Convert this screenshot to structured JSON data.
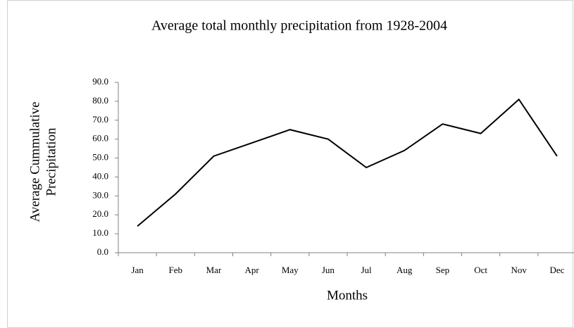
{
  "chart_data": {
    "type": "line",
    "title": "Average total monthly precipitation from 1928-2004",
    "x_label": "Months",
    "y_label": [
      "Average Cummulative",
      "Precipitation"
    ],
    "categories": [
      "Jan",
      "Feb",
      "Mar",
      "Apr",
      "May",
      "Jun",
      "Jul",
      "Aug",
      "Sep",
      "Oct",
      "Nov",
      "Dec"
    ],
    "values": [
      14,
      31,
      51,
      58,
      65,
      60,
      45,
      54,
      68,
      63,
      81,
      51
    ],
    "color": "#000000",
    "ylim": [
      0,
      90
    ],
    "yticks": [
      {
        "value": 0,
        "label": "0.0"
      },
      {
        "value": 10,
        "label": "10.0"
      },
      {
        "value": 20,
        "label": "20.0"
      },
      {
        "value": 30,
        "label": "30.0"
      },
      {
        "value": 40,
        "label": "40.0"
      },
      {
        "value": 50,
        "label": "50.0"
      },
      {
        "value": 60,
        "label": "60.0"
      },
      {
        "value": 70,
        "label": "70.0"
      },
      {
        "value": 80,
        "label": "80.0"
      },
      {
        "value": 90,
        "label": "90.0"
      }
    ],
    "grid": false
  }
}
